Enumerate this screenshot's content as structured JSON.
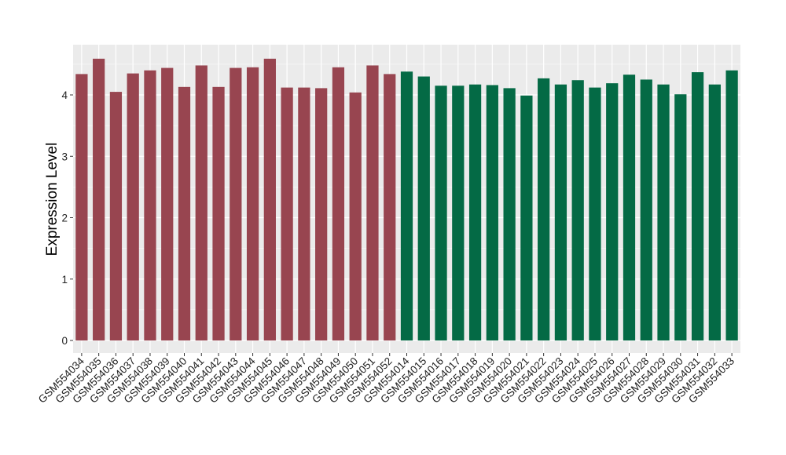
{
  "chart_data": {
    "type": "bar",
    "ylabel": "Expression Level",
    "xlabel": "",
    "ylim": [
      -0.2,
      4.7
    ],
    "yticks": [
      0,
      1,
      2,
      3,
      4
    ],
    "grid": true,
    "colors": {
      "group_a": "#984550",
      "group_b": "#046A45",
      "panel_bg": "#EBEBEB",
      "grid": "#FFFFFF"
    },
    "categories": [
      "GSM554034",
      "GSM554035",
      "GSM554036",
      "GSM554037",
      "GSM554038",
      "GSM554039",
      "GSM554040",
      "GSM554041",
      "GSM554042",
      "GSM554043",
      "GSM554044",
      "GSM554045",
      "GSM554046",
      "GSM554047",
      "GSM554048",
      "GSM554049",
      "GSM554050",
      "GSM554051",
      "GSM554052",
      "GSM554014",
      "GSM554015",
      "GSM554016",
      "GSM554017",
      "GSM554018",
      "GSM554019",
      "GSM554020",
      "GSM554021",
      "GSM554022",
      "GSM554023",
      "GSM554024",
      "GSM554025",
      "GSM554026",
      "GSM554027",
      "GSM554028",
      "GSM554029",
      "GSM554030",
      "GSM554031",
      "GSM554032",
      "GSM554033"
    ],
    "values": [
      4.34,
      4.59,
      4.05,
      4.35,
      4.4,
      4.44,
      4.13,
      4.48,
      4.13,
      4.44,
      4.45,
      4.59,
      4.12,
      4.12,
      4.11,
      4.45,
      4.04,
      4.48,
      4.34,
      4.38,
      4.3,
      4.15,
      4.15,
      4.17,
      4.16,
      4.11,
      3.99,
      4.27,
      4.17,
      4.24,
      4.12,
      4.19,
      4.33,
      4.25,
      4.17,
      4.01,
      4.37,
      4.17,
      4.4
    ],
    "groups": [
      "a",
      "a",
      "a",
      "a",
      "a",
      "a",
      "a",
      "a",
      "a",
      "a",
      "a",
      "a",
      "a",
      "a",
      "a",
      "a",
      "a",
      "a",
      "a",
      "b",
      "b",
      "b",
      "b",
      "b",
      "b",
      "b",
      "b",
      "b",
      "b",
      "b",
      "b",
      "b",
      "b",
      "b",
      "b",
      "b",
      "b",
      "b",
      "b"
    ]
  }
}
